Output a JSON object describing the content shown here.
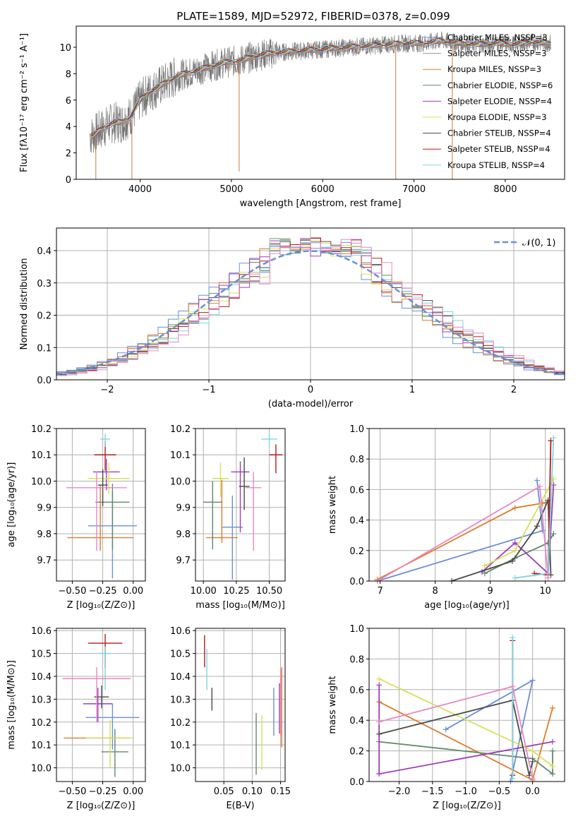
{
  "chart_data": [
    {
      "id": "spectrum",
      "type": "line",
      "title": "PLATE=1589, MJD=52972, FIBERID=0378, z=0.099",
      "xlabel": "wavelength [Angstrom, rest frame]",
      "ylabel": "Flux [fλ10⁻¹⁷ erg cm⁻² s⁻¹ A⁻¹]",
      "xlim": [
        3300,
        8650
      ],
      "ylim": [
        0,
        11.6
      ],
      "xticks": [
        4000,
        5000,
        6000,
        7000,
        8000
      ],
      "yticks": [
        0,
        2,
        4,
        6,
        8,
        10
      ],
      "data_x": [
        3450,
        3500,
        3600,
        3700,
        3800,
        3900,
        4000,
        4100,
        4200,
        4300,
        4400,
        4500,
        4700,
        4900,
        5100,
        5300,
        5500,
        5700,
        5900,
        6100,
        6300,
        6500,
        6700,
        6900,
        7100,
        7300,
        7500,
        7700,
        7900,
        8100,
        8300,
        8500
      ],
      "data_y": [
        3.3,
        3.4,
        3.9,
        4.3,
        4.3,
        4.8,
        6.0,
        6.6,
        7.0,
        7.4,
        7.8,
        8.0,
        8.4,
        8.8,
        9.0,
        9.4,
        9.6,
        9.7,
        9.8,
        9.9,
        10.0,
        10.1,
        10.2,
        10.3,
        10.3,
        10.5,
        10.3,
        10.2,
        10.3,
        10.2,
        10.4,
        10.3
      ],
      "series": [
        {
          "name": "Chabrier MILES, N_SSP=3",
          "color": "#6a8fd8"
        },
        {
          "name": "Salpeter MILES, N_SSP=3",
          "color": "#9a9a9a"
        },
        {
          "name": "Kroupa MILES, N_SSP=3",
          "color": "#e07b2a"
        },
        {
          "name": "Chabrier ELODIE, N_SSP=6",
          "color": "#5f8a6a"
        },
        {
          "name": "Salpeter ELODIE, N_SSP=4",
          "color": "#9e3cb8"
        },
        {
          "name": "Kroupa ELODIE, N_SSP=3",
          "color": "#d6e05a"
        },
        {
          "name": "Chabrier STELIB, N_SSP=4",
          "color": "#4a4a4a"
        },
        {
          "name": "Salpeter STELIB, N_SSP=4",
          "color": "#b31b1b"
        },
        {
          "name": "Kroupa STELIB, N_SSP=4",
          "color": "#7fd6e0"
        }
      ]
    },
    {
      "id": "residuals",
      "type": "bar",
      "xlabel": "(data-model)/error",
      "ylabel": "Normed distribution",
      "xlim": [
        -2.5,
        2.5
      ],
      "ylim": [
        0,
        0.47
      ],
      "xticks": [
        -2,
        -1,
        0,
        1,
        2
      ],
      "xtick_labels": [
        "−2",
        "−1",
        "0",
        "1",
        "2"
      ],
      "yticks": [
        0.0,
        0.1,
        0.2,
        0.3,
        0.4
      ],
      "ytick_labels": [
        "0.0",
        "0.1",
        "0.2",
        "0.3",
        "0.4"
      ],
      "legend": "𝒩(0, 1)",
      "gaussian_color": "#6a8fd8",
      "hist_colors": [
        "#6a8fd8",
        "#e07b2a",
        "#5f8a6a",
        "#9e3cb8",
        "#d6e05a",
        "#4a4a4a",
        "#b31b1b",
        "#7fd6e0",
        "#e888c4"
      ]
    },
    {
      "id": "age-vs-Z",
      "type": "scatter",
      "xlabel": "Z [log₁₀(Z/Z⊙)]",
      "ylabel": "age  [log₁₀(age/yr)]",
      "xlim": [
        -0.63,
        0.1
      ],
      "ylim": [
        9.62,
        10.2
      ],
      "xticks": [
        -0.5,
        -0.25,
        0.0
      ],
      "xtick_labels": [
        "−0.50",
        "−0.25",
        "0.00"
      ],
      "yticks": [
        9.7,
        9.8,
        9.9,
        10.0,
        10.1,
        10.2
      ],
      "ytick_labels": [
        "9.7",
        "9.8",
        "9.9",
        "10.0",
        "10.1",
        "10.2"
      ],
      "points": [
        {
          "x": -0.17,
          "y": 9.83,
          "xerr": 0.2,
          "yerr": [
            0.2,
            0.13
          ],
          "color": "#6a8fd8"
        },
        {
          "x": -0.27,
          "y": 9.785,
          "xerr": 0.27,
          "yerr": [
            0.05,
            0.2
          ],
          "color": "#e07b2a"
        },
        {
          "x": -0.17,
          "y": 9.92,
          "xerr": 0.14,
          "yerr": [
            0.18,
            0.07
          ],
          "color": "#5f8a6a"
        },
        {
          "x": -0.22,
          "y": 10.035,
          "xerr": 0.11,
          "yerr": [
            0.07,
            0.05
          ],
          "color": "#9e3cb8"
        },
        {
          "x": -0.2,
          "y": 10.01,
          "xerr": 0.17,
          "yerr": [
            0.06,
            0.06
          ],
          "color": "#d6e05a"
        },
        {
          "x": -0.25,
          "y": 9.985,
          "xerr": 0.04,
          "yerr": [
            0.08,
            0.06
          ],
          "color": "#4a4a4a"
        },
        {
          "x": -0.23,
          "y": 10.1,
          "xerr": 0.09,
          "yerr": [
            0.06,
            0.05
          ],
          "color": "#b31b1b"
        },
        {
          "x": -0.23,
          "y": 10.16,
          "xerr": 0.04,
          "yerr": [
            0.03,
            0.02
          ],
          "color": "#7fd6e0"
        },
        {
          "x": -0.3,
          "y": 9.975,
          "xerr": 0.25,
          "yerr": [
            0.24,
            0.06
          ],
          "color": "#e888c4"
        }
      ]
    },
    {
      "id": "age-vs-mass",
      "type": "scatter",
      "xlabel": "mass [log₁₀(M/M⊙)]",
      "ylabel": "",
      "xlim": [
        9.94,
        10.62
      ],
      "ylim": [
        9.62,
        10.2
      ],
      "xticks": [
        10.0,
        10.25,
        10.5
      ],
      "xtick_labels": [
        "10.00",
        "10.25",
        "10.50"
      ],
      "yticks": [
        9.7,
        9.8,
        9.9,
        10.0,
        10.1,
        10.2
      ],
      "ytick_labels": [
        "9.7",
        "9.8",
        "9.9",
        "10.0",
        "10.1",
        "10.2"
      ],
      "points": [
        {
          "x": 10.22,
          "y": 9.825,
          "xerr": 0.08,
          "yerr": [
            0.2,
            0.12
          ],
          "color": "#6a8fd8"
        },
        {
          "x": 10.14,
          "y": 9.785,
          "xerr": 0.12,
          "yerr": [
            0.02,
            0.22
          ],
          "color": "#e07b2a"
        },
        {
          "x": 10.07,
          "y": 9.92,
          "xerr": 0.07,
          "yerr": [
            0.18,
            0.08
          ],
          "color": "#5f8a6a"
        },
        {
          "x": 10.28,
          "y": 10.035,
          "xerr": 0.07,
          "yerr": [
            0.23,
            0.04
          ],
          "color": "#9e3cb8"
        },
        {
          "x": 10.13,
          "y": 10.01,
          "xerr": 0.06,
          "yerr": [
            0.07,
            0.06
          ],
          "color": "#d6e05a"
        },
        {
          "x": 10.31,
          "y": 9.98,
          "xerr": 0.04,
          "yerr": [
            0.09,
            0.11
          ],
          "color": "#4a4a4a"
        },
        {
          "x": 10.55,
          "y": 10.1,
          "xerr": 0.05,
          "yerr": [
            0.07,
            0.04
          ],
          "color": "#b31b1b"
        },
        {
          "x": 10.5,
          "y": 10.16,
          "xerr": 0.06,
          "yerr": [
            0.03,
            0.02
          ],
          "color": "#7fd6e0"
        },
        {
          "x": 10.38,
          "y": 9.975,
          "xerr": 0.06,
          "yerr": [
            0.24,
            0.06
          ],
          "color": "#e888c4"
        }
      ]
    },
    {
      "id": "mass-weight-vs-age",
      "type": "line",
      "xlabel": "age  [log₁₀(age/yr)]",
      "ylabel": "mass weight",
      "xlim": [
        6.8,
        10.35
      ],
      "ylim": [
        0,
        1.0
      ],
      "xticks": [
        7,
        8,
        9,
        10
      ],
      "yticks": [
        0.0,
        0.2,
        0.4,
        0.6,
        0.8,
        1.0
      ],
      "ytick_labels": [
        "0.0",
        "0.2",
        "0.4",
        "0.6",
        "0.8",
        "1.0"
      ],
      "series": [
        {
          "color": "#6a8fd8",
          "x": [
            6.95,
            9.95,
            9.85
          ],
          "y": [
            0.0,
            0.33,
            0.66
          ]
        },
        {
          "color": "#e07b2a",
          "x": [
            6.95,
            9.45,
            9.95,
            10.05
          ],
          "y": [
            0.01,
            0.48,
            0.51,
            0.52
          ]
        },
        {
          "color": "#5f8a6a",
          "x": [
            8.9,
            9.45,
            10.05,
            10.15
          ],
          "y": [
            0.05,
            0.15,
            0.25,
            0.31
          ]
        },
        {
          "color": "#9e3cb8",
          "x": [
            8.85,
            9.45,
            10.05,
            10.15
          ],
          "y": [
            0.06,
            0.25,
            0.05,
            0.63
          ]
        },
        {
          "color": "#d6e05a",
          "x": [
            8.9,
            9.45,
            10.15
          ],
          "y": [
            0.1,
            0.2,
            0.67
          ]
        },
        {
          "color": "#4a4a4a",
          "x": [
            8.3,
            9.4,
            9.85,
            10.05,
            10.1
          ],
          "y": [
            0.0,
            0.13,
            0.36,
            0.53,
            0.04
          ]
        },
        {
          "color": "#b31b1b",
          "x": [
            9.8,
            10.05,
            10.1
          ],
          "y": [
            0.05,
            0.04,
            0.92
          ]
        },
        {
          "color": "#7fd6e0",
          "x": [
            9.45,
            10.05,
            10.15
          ],
          "y": [
            0.02,
            0.05,
            0.94
          ]
        },
        {
          "color": "#e888c4",
          "x": [
            6.95,
            9.9,
            10.05
          ],
          "y": [
            0.0,
            0.62,
            0.02
          ]
        }
      ]
    },
    {
      "id": "mass-vs-Z",
      "type": "scatter",
      "xlabel": "Z [log₁₀(Z/Z⊙)]",
      "ylabel": "mass [log₁₀(M/M⊙)]",
      "xlim": [
        -0.63,
        0.1
      ],
      "ylim": [
        9.94,
        10.61
      ],
      "xticks": [
        -0.5,
        -0.25,
        0.0
      ],
      "xtick_labels": [
        "−0.50",
        "−0.25",
        "0.00"
      ],
      "yticks": [
        10.0,
        10.1,
        10.2,
        10.3,
        10.4,
        10.5,
        10.6
      ],
      "ytick_labels": [
        "10.0",
        "10.1",
        "10.2",
        "10.3",
        "10.4",
        "10.5",
        "10.6"
      ],
      "points": [
        {
          "x": -0.17,
          "y": 10.22,
          "xerr": 0.22,
          "yerr": [
            0.14,
            0.06
          ],
          "color": "#6a8fd8"
        },
        {
          "x": -0.3,
          "y": 10.13,
          "xerr": 0.27,
          "yerr": [
            0.0,
            0.0
          ],
          "color": "#e07b2a"
        },
        {
          "x": -0.15,
          "y": 10.07,
          "xerr": 0.11,
          "yerr": [
            0.11,
            0.1
          ],
          "color": "#5f8a6a"
        },
        {
          "x": -0.29,
          "y": 10.28,
          "xerr": 0.12,
          "yerr": [
            0.08,
            0.07
          ],
          "color": "#9e3cb8"
        },
        {
          "x": -0.19,
          "y": 10.13,
          "xerr": 0.2,
          "yerr": [
            0.13,
            0.08
          ],
          "color": "#d6e05a"
        },
        {
          "x": -0.26,
          "y": 10.31,
          "xerr": 0.06,
          "yerr": [
            0.05,
            0.05
          ],
          "color": "#4a4a4a"
        },
        {
          "x": -0.23,
          "y": 10.545,
          "xerr": 0.14,
          "yerr": [
            0.11,
            0.04
          ],
          "color": "#b31b1b"
        },
        {
          "x": -0.23,
          "y": 10.5,
          "xerr": 0.05,
          "yerr": [
            0.16,
            0.03
          ],
          "color": "#7fd6e0"
        },
        {
          "x": -0.3,
          "y": 10.39,
          "xerr": 0.28,
          "yerr": [
            0.19,
            0.05
          ],
          "color": "#e888c4"
        }
      ]
    },
    {
      "id": "mass-vs-EBV",
      "type": "scatter",
      "xlabel": "E(B-V)",
      "ylabel": "",
      "xlim": [
        0.0,
        0.158
      ],
      "ylim": [
        9.94,
        10.61
      ],
      "xticks": [
        0.05,
        0.1,
        0.15
      ],
      "xtick_labels": [
        "0.05",
        "0.10",
        "0.15"
      ],
      "yticks": [
        10.0,
        10.1,
        10.2,
        10.3,
        10.4,
        10.5,
        10.6
      ],
      "ytick_labels": [
        "10.0",
        "10.1",
        "10.2",
        "10.3",
        "10.4",
        "10.5",
        "10.6"
      ],
      "points": [
        {
          "x": 0.138,
          "y": 10.22,
          "yerr": [
            0.08,
            0.13
          ],
          "color": "#6a8fd8"
        },
        {
          "x": 0.152,
          "y": 10.26,
          "yerr": [
            0.17,
            0.18
          ],
          "color": "#e07b2a"
        },
        {
          "x": 0.107,
          "y": 10.09,
          "yerr": [
            0.12,
            0.15
          ],
          "color": "#5f8a6a"
        },
        {
          "x": 0.148,
          "y": 10.26,
          "yerr": [
            0.11,
            0.11
          ],
          "color": "#9e3cb8"
        },
        {
          "x": 0.117,
          "y": 10.11,
          "yerr": [
            0.12,
            0.12
          ],
          "color": "#d6e05a"
        },
        {
          "x": 0.029,
          "y": 10.3,
          "yerr": [
            0.05,
            0.05
          ],
          "color": "#4a4a4a"
        },
        {
          "x": 0.016,
          "y": 10.5,
          "yerr": [
            0.06,
            0.08
          ],
          "color": "#b31b1b"
        },
        {
          "x": 0.02,
          "y": 10.43,
          "yerr": [
            0.09,
            0.09
          ],
          "color": "#7fd6e0"
        },
        {
          "x": 0.15,
          "y": 10.28,
          "yerr": [
            0.14,
            0.15
          ],
          "color": "#e888c4"
        }
      ]
    },
    {
      "id": "mass-weight-vs-Z",
      "type": "line",
      "xlabel": "Z [log₁₀(Z/Z⊙)]",
      "ylabel": "mass weight",
      "xlim": [
        -2.45,
        0.48
      ],
      "ylim": [
        0,
        1.0
      ],
      "xticks": [
        -2.0,
        -1.5,
        -1.0,
        -0.5,
        0.0
      ],
      "xtick_labels": [
        "−2.0",
        "−1.5",
        "−1.0",
        "−0.5",
        "0.0"
      ],
      "yticks": [
        0.0,
        0.2,
        0.4,
        0.6,
        0.8,
        1.0
      ],
      "ytick_labels": [
        "0.0",
        "0.2",
        "0.4",
        "0.6",
        "0.8",
        "1.0"
      ],
      "series": [
        {
          "color": "#6a8fd8",
          "x": [
            -1.3,
            0.0,
            -0.33
          ],
          "y": [
            0.34,
            0.66,
            0.0
          ]
        },
        {
          "color": "#e07b2a",
          "x": [
            -2.3,
            0.0,
            0.3
          ],
          "y": [
            0.52,
            0.01,
            0.48
          ]
        },
        {
          "color": "#5f8a6a",
          "x": [
            -2.3,
            0.0,
            0.3,
            0.3
          ],
          "y": [
            0.26,
            0.15,
            0.05,
            0.2
          ]
        },
        {
          "color": "#9e3cb8",
          "x": [
            -2.3,
            -2.3,
            0.3
          ],
          "y": [
            0.63,
            0.05,
            0.26
          ]
        },
        {
          "color": "#d6e05a",
          "x": [
            -2.3,
            0.0,
            0.3
          ],
          "y": [
            0.67,
            0.2,
            0.1
          ]
        },
        {
          "color": "#4a4a4a",
          "x": [
            -2.3,
            -0.3,
            -0.05,
            0.0
          ],
          "y": [
            0.31,
            0.53,
            0.04,
            0.13
          ]
        },
        {
          "color": "#b31b1b",
          "x": [
            -0.3,
            -0.3
          ],
          "y": [
            0.92,
            0.04
          ]
        },
        {
          "color": "#7fd6e0",
          "x": [
            -0.3,
            -0.3,
            -0.3
          ],
          "y": [
            0.94,
            0.02,
            0.05
          ]
        },
        {
          "color": "#e888c4",
          "x": [
            -2.3,
            -0.3,
            0.0
          ],
          "y": [
            0.39,
            0.62,
            0.02
          ]
        }
      ]
    }
  ]
}
